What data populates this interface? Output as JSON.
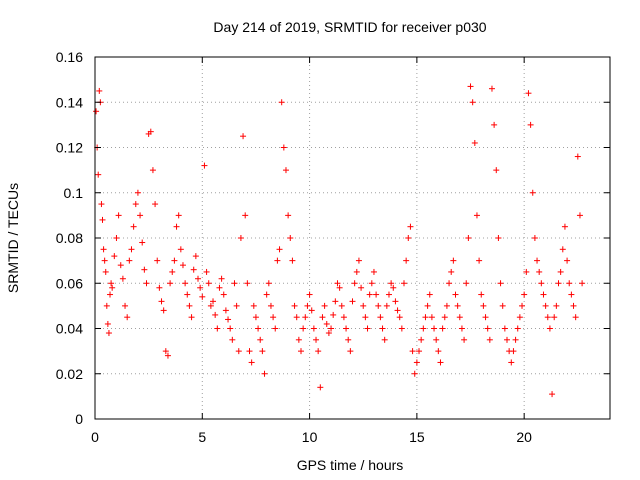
{
  "chart_data": {
    "type": "scatter",
    "title": "Day 214 of 2019, SRMTID for receiver p030",
    "xlabel": "GPS time / hours",
    "ylabel": "SRMTID / TECUs",
    "xlim": [
      0,
      24
    ],
    "ylim": [
      0,
      0.16
    ],
    "x_ticks": [
      0,
      5,
      10,
      15,
      20
    ],
    "x_tick_labels": [
      "0",
      "5",
      "10",
      "15",
      "20"
    ],
    "y_ticks": [
      0,
      0.02,
      0.04,
      0.06,
      0.08,
      0.1,
      0.12,
      0.14,
      0.16
    ],
    "y_tick_labels": [
      "0",
      "0.02",
      "0.04",
      "0.06",
      "0.08",
      "0.1",
      "0.12",
      "0.14",
      "0.16"
    ],
    "grid": true,
    "marker": "+",
    "marker_color": "#ff0000",
    "series": [
      {
        "name": "SRMTID",
        "points": [
          [
            0.05,
            0.136
          ],
          [
            0.1,
            0.12
          ],
          [
            0.15,
            0.108
          ],
          [
            0.2,
            0.145
          ],
          [
            0.25,
            0.14
          ],
          [
            0.3,
            0.095
          ],
          [
            0.35,
            0.088
          ],
          [
            0.4,
            0.075
          ],
          [
            0.45,
            0.07
          ],
          [
            0.5,
            0.065
          ],
          [
            0.55,
            0.05
          ],
          [
            0.6,
            0.042
          ],
          [
            0.65,
            0.038
          ],
          [
            0.7,
            0.055
          ],
          [
            0.75,
            0.06
          ],
          [
            0.8,
            0.058
          ],
          [
            0.9,
            0.072
          ],
          [
            1.0,
            0.08
          ],
          [
            1.1,
            0.09
          ],
          [
            1.2,
            0.068
          ],
          [
            1.3,
            0.062
          ],
          [
            1.4,
            0.05
          ],
          [
            1.5,
            0.045
          ],
          [
            1.6,
            0.07
          ],
          [
            1.7,
            0.075
          ],
          [
            1.8,
            0.085
          ],
          [
            1.9,
            0.095
          ],
          [
            2.0,
            0.1
          ],
          [
            2.1,
            0.09
          ],
          [
            2.2,
            0.078
          ],
          [
            2.3,
            0.066
          ],
          [
            2.4,
            0.06
          ],
          [
            2.5,
            0.126
          ],
          [
            2.6,
            0.127
          ],
          [
            2.7,
            0.11
          ],
          [
            2.8,
            0.095
          ],
          [
            2.9,
            0.07
          ],
          [
            3.0,
            0.058
          ],
          [
            3.1,
            0.052
          ],
          [
            3.2,
            0.048
          ],
          [
            3.3,
            0.03
          ],
          [
            3.4,
            0.028
          ],
          [
            3.5,
            0.06
          ],
          [
            3.6,
            0.065
          ],
          [
            3.7,
            0.07
          ],
          [
            3.8,
            0.085
          ],
          [
            3.9,
            0.09
          ],
          [
            4.0,
            0.075
          ],
          [
            4.1,
            0.068
          ],
          [
            4.2,
            0.06
          ],
          [
            4.3,
            0.055
          ],
          [
            4.4,
            0.05
          ],
          [
            4.5,
            0.045
          ],
          [
            4.6,
            0.066
          ],
          [
            4.7,
            0.072
          ],
          [
            4.8,
            0.062
          ],
          [
            4.9,
            0.058
          ],
          [
            5.0,
            0.054
          ],
          [
            5.1,
            0.112
          ],
          [
            5.2,
            0.065
          ],
          [
            5.3,
            0.06
          ],
          [
            5.4,
            0.05
          ],
          [
            5.5,
            0.052
          ],
          [
            5.6,
            0.046
          ],
          [
            5.7,
            0.04
          ],
          [
            5.8,
            0.058
          ],
          [
            5.9,
            0.062
          ],
          [
            6.0,
            0.055
          ],
          [
            6.1,
            0.048
          ],
          [
            6.2,
            0.044
          ],
          [
            6.3,
            0.04
          ],
          [
            6.4,
            0.035
          ],
          [
            6.5,
            0.06
          ],
          [
            6.6,
            0.05
          ],
          [
            6.7,
            0.03
          ],
          [
            6.8,
            0.08
          ],
          [
            6.9,
            0.125
          ],
          [
            7.0,
            0.09
          ],
          [
            7.1,
            0.06
          ],
          [
            7.2,
            0.03
          ],
          [
            7.3,
            0.025
          ],
          [
            7.4,
            0.05
          ],
          [
            7.5,
            0.045
          ],
          [
            7.6,
            0.04
          ],
          [
            7.7,
            0.035
          ],
          [
            7.8,
            0.03
          ],
          [
            7.9,
            0.02
          ],
          [
            8.0,
            0.055
          ],
          [
            8.1,
            0.06
          ],
          [
            8.2,
            0.05
          ],
          [
            8.3,
            0.045
          ],
          [
            8.4,
            0.04
          ],
          [
            8.5,
            0.07
          ],
          [
            8.6,
            0.075
          ],
          [
            8.7,
            0.14
          ],
          [
            8.8,
            0.12
          ],
          [
            8.9,
            0.11
          ],
          [
            9.0,
            0.09
          ],
          [
            9.1,
            0.08
          ],
          [
            9.2,
            0.07
          ],
          [
            9.3,
            0.05
          ],
          [
            9.4,
            0.045
          ],
          [
            9.5,
            0.035
          ],
          [
            9.6,
            0.03
          ],
          [
            9.7,
            0.04
          ],
          [
            9.8,
            0.045
          ],
          [
            9.9,
            0.05
          ],
          [
            10.0,
            0.055
          ],
          [
            10.1,
            0.048
          ],
          [
            10.2,
            0.04
          ],
          [
            10.3,
            0.035
          ],
          [
            10.4,
            0.03
          ],
          [
            10.5,
            0.014
          ],
          [
            10.6,
            0.045
          ],
          [
            10.7,
            0.05
          ],
          [
            10.8,
            0.042
          ],
          [
            10.9,
            0.038
          ],
          [
            11.0,
            0.04
          ],
          [
            11.1,
            0.046
          ],
          [
            11.2,
            0.052
          ],
          [
            11.3,
            0.06
          ],
          [
            11.4,
            0.058
          ],
          [
            11.5,
            0.05
          ],
          [
            11.6,
            0.045
          ],
          [
            11.7,
            0.04
          ],
          [
            11.8,
            0.035
          ],
          [
            11.9,
            0.03
          ],
          [
            12.0,
            0.052
          ],
          [
            12.1,
            0.06
          ],
          [
            12.2,
            0.065
          ],
          [
            12.3,
            0.07
          ],
          [
            12.4,
            0.058
          ],
          [
            12.5,
            0.05
          ],
          [
            12.6,
            0.045
          ],
          [
            12.7,
            0.04
          ],
          [
            12.8,
            0.055
          ],
          [
            12.9,
            0.06
          ],
          [
            13.0,
            0.065
          ],
          [
            13.1,
            0.055
          ],
          [
            13.2,
            0.05
          ],
          [
            13.3,
            0.045
          ],
          [
            13.4,
            0.04
          ],
          [
            13.5,
            0.035
          ],
          [
            13.6,
            0.05
          ],
          [
            13.7,
            0.055
          ],
          [
            13.8,
            0.06
          ],
          [
            13.9,
            0.058
          ],
          [
            14.0,
            0.052
          ],
          [
            14.1,
            0.048
          ],
          [
            14.2,
            0.045
          ],
          [
            14.3,
            0.04
          ],
          [
            14.4,
            0.06
          ],
          [
            14.5,
            0.07
          ],
          [
            14.6,
            0.08
          ],
          [
            14.7,
            0.085
          ],
          [
            14.8,
            0.03
          ],
          [
            14.9,
            0.02
          ],
          [
            15.0,
            0.025
          ],
          [
            15.1,
            0.03
          ],
          [
            15.2,
            0.035
          ],
          [
            15.3,
            0.04
          ],
          [
            15.4,
            0.045
          ],
          [
            15.5,
            0.05
          ],
          [
            15.6,
            0.055
          ],
          [
            15.7,
            0.045
          ],
          [
            15.8,
            0.04
          ],
          [
            15.9,
            0.035
          ],
          [
            16.0,
            0.03
          ],
          [
            16.1,
            0.025
          ],
          [
            16.2,
            0.04
          ],
          [
            16.3,
            0.045
          ],
          [
            16.4,
            0.05
          ],
          [
            16.5,
            0.06
          ],
          [
            16.6,
            0.065
          ],
          [
            16.7,
            0.07
          ],
          [
            16.8,
            0.055
          ],
          [
            16.9,
            0.05
          ],
          [
            17.0,
            0.045
          ],
          [
            17.1,
            0.04
          ],
          [
            17.2,
            0.035
          ],
          [
            17.3,
            0.06
          ],
          [
            17.4,
            0.08
          ],
          [
            17.5,
            0.147
          ],
          [
            17.6,
            0.14
          ],
          [
            17.7,
            0.122
          ],
          [
            17.8,
            0.09
          ],
          [
            17.9,
            0.07
          ],
          [
            18.0,
            0.055
          ],
          [
            18.1,
            0.05
          ],
          [
            18.2,
            0.045
          ],
          [
            18.3,
            0.04
          ],
          [
            18.4,
            0.035
          ],
          [
            18.5,
            0.146
          ],
          [
            18.6,
            0.13
          ],
          [
            18.7,
            0.11
          ],
          [
            18.8,
            0.08
          ],
          [
            18.9,
            0.06
          ],
          [
            19.0,
            0.05
          ],
          [
            19.1,
            0.04
          ],
          [
            19.2,
            0.035
          ],
          [
            19.3,
            0.03
          ],
          [
            19.4,
            0.025
          ],
          [
            19.5,
            0.03
          ],
          [
            19.6,
            0.035
          ],
          [
            19.7,
            0.04
          ],
          [
            19.8,
            0.045
          ],
          [
            19.9,
            0.05
          ],
          [
            20.0,
            0.055
          ],
          [
            20.1,
            0.065
          ],
          [
            20.2,
            0.144
          ],
          [
            20.3,
            0.13
          ],
          [
            20.4,
            0.1
          ],
          [
            20.5,
            0.08
          ],
          [
            20.6,
            0.07
          ],
          [
            20.7,
            0.065
          ],
          [
            20.8,
            0.06
          ],
          [
            20.9,
            0.055
          ],
          [
            21.0,
            0.05
          ],
          [
            21.1,
            0.045
          ],
          [
            21.2,
            0.04
          ],
          [
            21.3,
            0.011
          ],
          [
            21.4,
            0.045
          ],
          [
            21.5,
            0.05
          ],
          [
            21.6,
            0.06
          ],
          [
            21.7,
            0.065
          ],
          [
            21.8,
            0.075
          ],
          [
            21.9,
            0.085
          ],
          [
            22.0,
            0.07
          ],
          [
            22.1,
            0.06
          ],
          [
            22.2,
            0.055
          ],
          [
            22.3,
            0.05
          ],
          [
            22.4,
            0.045
          ],
          [
            22.5,
            0.116
          ],
          [
            22.6,
            0.09
          ],
          [
            22.7,
            0.06
          ]
        ]
      }
    ]
  }
}
